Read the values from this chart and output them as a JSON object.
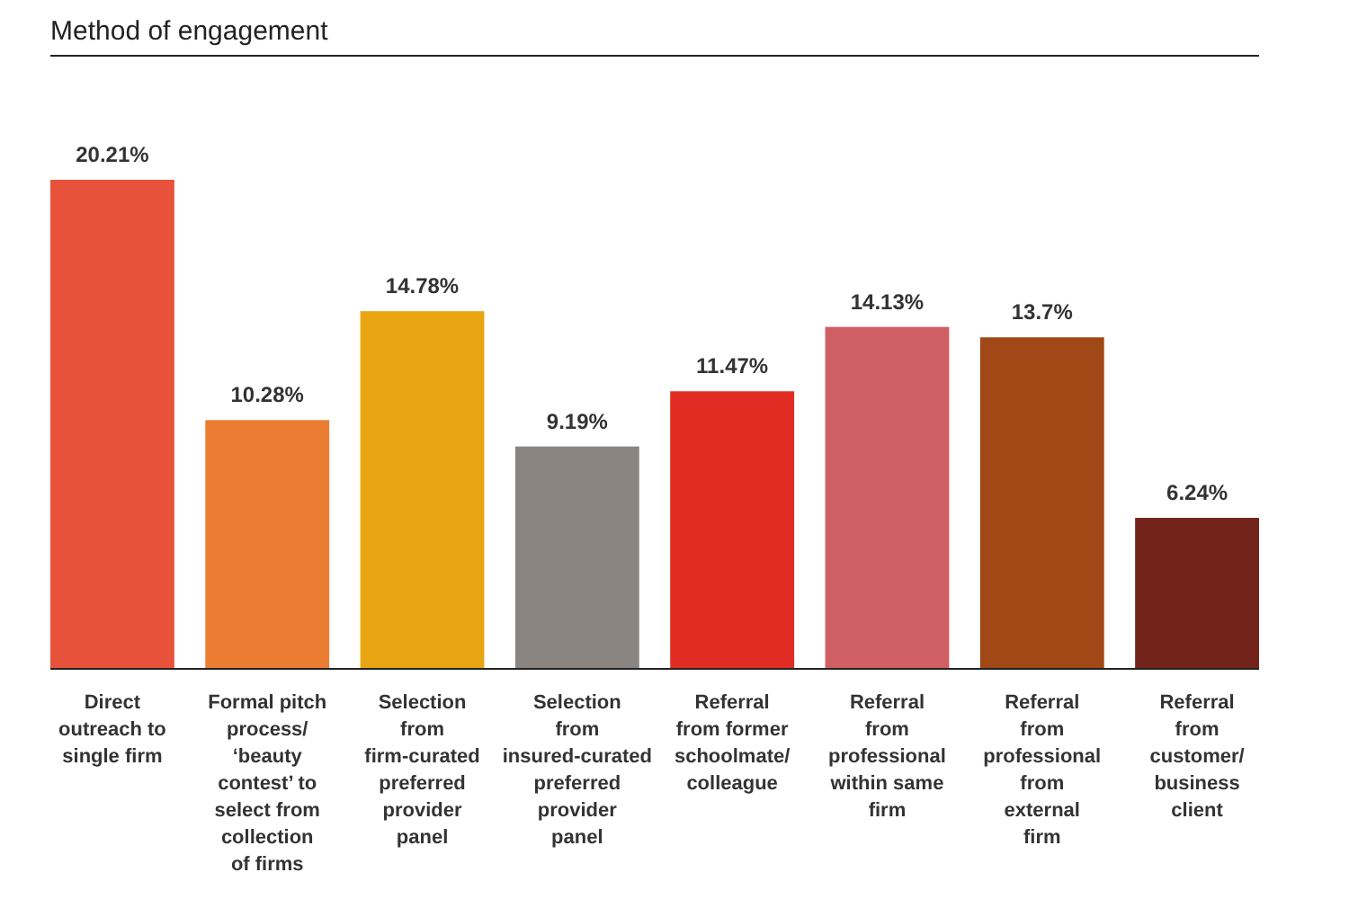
{
  "chart_data": {
    "type": "bar",
    "title": "Method of engagement",
    "categories": [
      "Direct outreach to single firm",
      "Formal pitch process/ ‘beauty contest’ to select from collection of firms",
      "Selection from firm-curated preferred provider panel",
      "Selection from insured-curated preferred provider panel",
      "Referral from former schoolmate/ colleague",
      "Referral from professional within same firm",
      "Referral from professional from external firm",
      "Referral from customer/ business client"
    ],
    "values": [
      20.21,
      10.28,
      14.78,
      9.19,
      11.47,
      14.13,
      13.7,
      6.24
    ],
    "value_labels": [
      "20.21%",
      "10.28%",
      "14.78%",
      "9.19%",
      "11.47%",
      "14.13%",
      "13.7%",
      "6.24%"
    ],
    "colors": [
      "#e8523a",
      "#eb7d33",
      "#e8a612",
      "#8a8580",
      "#e02c22",
      "#cf5f62",
      "#a04916",
      "#72241b"
    ]
  }
}
